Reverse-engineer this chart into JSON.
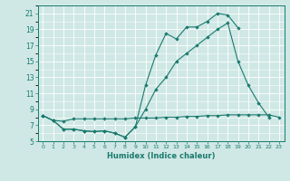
{
  "xlabel": "Humidex (Indice chaleur)",
  "background_color": "#cfe8e5",
  "grid_color": "#ffffff",
  "line_color": "#1a7a6e",
  "xlim": [
    -0.5,
    23.5
  ],
  "ylim": [
    5,
    22
  ],
  "xticks": [
    0,
    1,
    2,
    3,
    4,
    5,
    6,
    7,
    8,
    9,
    10,
    11,
    12,
    13,
    14,
    15,
    16,
    17,
    18,
    19,
    20,
    21,
    22,
    23
  ],
  "yticks": [
    5,
    7,
    9,
    11,
    13,
    15,
    17,
    19,
    21
  ],
  "line1_x": [
    0,
    1,
    2,
    3,
    4,
    5,
    6,
    7,
    8,
    9,
    10,
    11,
    12,
    13,
    14,
    15,
    16,
    17,
    18,
    19
  ],
  "line1_y": [
    8.2,
    7.6,
    6.5,
    6.5,
    6.3,
    6.2,
    6.3,
    6.0,
    5.5,
    6.8,
    12.0,
    15.8,
    18.5,
    17.8,
    19.3,
    19.3,
    20.0,
    21.0,
    20.8,
    19.2
  ],
  "line2_x": [
    0,
    1,
    2,
    3,
    4,
    5,
    6,
    7,
    8,
    9,
    10,
    11,
    12,
    13,
    14,
    15,
    16,
    17,
    18,
    19,
    20,
    21,
    22
  ],
  "line2_y": [
    8.2,
    7.6,
    6.5,
    6.5,
    6.3,
    6.2,
    6.3,
    6.0,
    5.5,
    6.8,
    9.0,
    11.5,
    13.0,
    15.0,
    16.0,
    17.0,
    18.0,
    19.0,
    19.8,
    15.0,
    12.0,
    9.8,
    8.0
  ],
  "line3_x": [
    0,
    1,
    2,
    3,
    4,
    5,
    6,
    7,
    8,
    9,
    10,
    11,
    12,
    13,
    14,
    15,
    16,
    17,
    18,
    19,
    20,
    21,
    22,
    23
  ],
  "line3_y": [
    8.2,
    7.6,
    7.5,
    7.8,
    7.8,
    7.8,
    7.8,
    7.8,
    7.8,
    7.9,
    7.9,
    7.9,
    8.0,
    8.0,
    8.1,
    8.1,
    8.2,
    8.2,
    8.3,
    8.3,
    8.3,
    8.3,
    8.3,
    8.0
  ],
  "xlabel_fontsize": 6.0,
  "tick_fontsize_x": 4.5,
  "tick_fontsize_y": 5.5
}
